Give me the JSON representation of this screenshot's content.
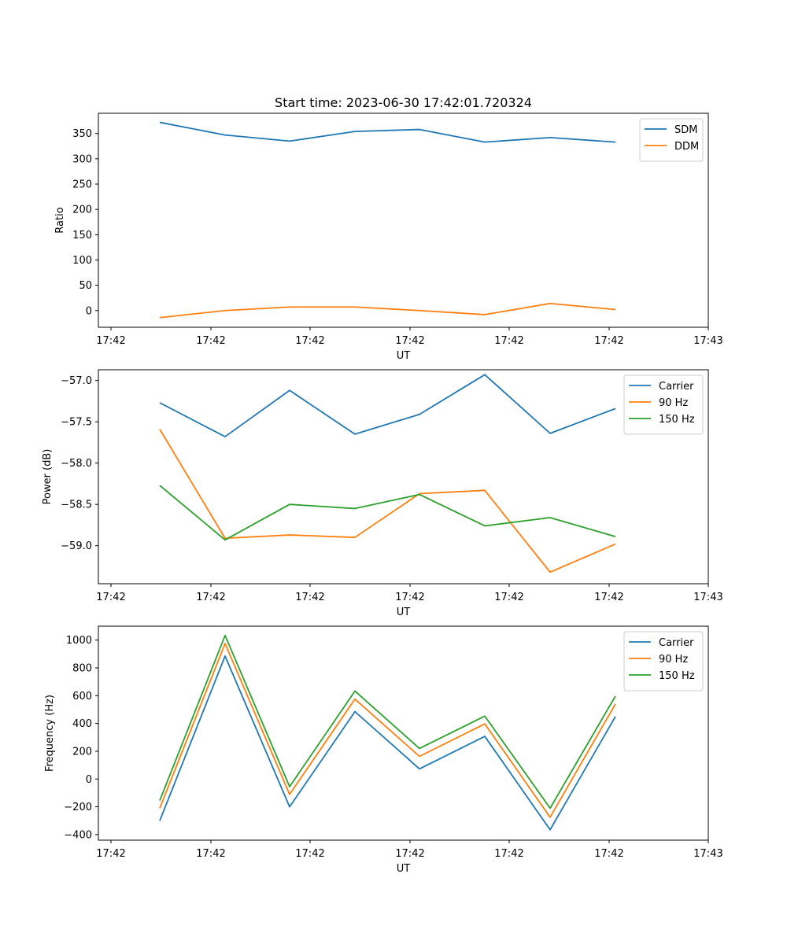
{
  "figure": {
    "title": "Start time: 2023-06-30 17:42:01.720324"
  },
  "colors": {
    "blue": "#1f77b4",
    "orange": "#ff7f0e",
    "green": "#2ca02c"
  },
  "chart_data": [
    {
      "type": "line",
      "title": "Start time: 2023-06-30 17:42:01.720324",
      "xlabel": "UT",
      "ylabel": "Ratio",
      "x_tick_labels": [
        "17:42",
        "17:42",
        "17:42",
        "17:42",
        "17:42",
        "17:42",
        "17:42"
      ],
      "x_end_label": "17:43",
      "x": [
        1,
        2,
        3,
        4,
        5,
        6,
        7,
        8
      ],
      "y_ticks": [
        0,
        50,
        100,
        150,
        200,
        250,
        300,
        350
      ],
      "ylim": [
        -33,
        390
      ],
      "legend": "top-right",
      "grid": false,
      "series": [
        {
          "name": "SDM",
          "color": "#1f77b4",
          "values": [
            372,
            347,
            335,
            354,
            358,
            333,
            342,
            333
          ]
        },
        {
          "name": "DDM",
          "color": "#ff7f0e",
          "values": [
            -14,
            0,
            7,
            7,
            0,
            -8,
            14,
            2
          ]
        }
      ]
    },
    {
      "type": "line",
      "xlabel": "UT",
      "ylabel": "Power (dB)",
      "x_tick_labels": [
        "17:42",
        "17:42",
        "17:42",
        "17:42",
        "17:42",
        "17:42",
        "17:42"
      ],
      "x_end_label": "17:43",
      "x": [
        1,
        2,
        3,
        4,
        5,
        6,
        7,
        8
      ],
      "y_ticks": [
        -59.0,
        -58.5,
        -58.0,
        -57.5,
        -57.0
      ],
      "y_tick_labels": [
        "−59.0",
        "−58.5",
        "−58.0",
        "−57.5",
        "−57.0"
      ],
      "ylim": [
        -59.46,
        -56.87
      ],
      "legend": "top-right",
      "grid": false,
      "series": [
        {
          "name": "Carrier",
          "color": "#1f77b4",
          "values": [
            -57.27,
            -57.68,
            -57.12,
            -57.65,
            -57.41,
            -56.93,
            -57.64,
            -57.34
          ]
        },
        {
          "name": "90 Hz",
          "color": "#ff7f0e",
          "values": [
            -57.59,
            -58.91,
            -58.87,
            -58.9,
            -58.37,
            -58.33,
            -59.32,
            -58.98
          ]
        },
        {
          "name": "150 Hz",
          "color": "#2ca02c",
          "values": [
            -58.27,
            -58.93,
            -58.5,
            -58.55,
            -58.38,
            -58.76,
            -58.66,
            -58.89
          ]
        }
      ]
    },
    {
      "type": "line",
      "xlabel": "UT",
      "ylabel": "Frequency (Hz)",
      "x_tick_labels": [
        "17:42",
        "17:42",
        "17:42",
        "17:42",
        "17:42",
        "17:42",
        "17:42"
      ],
      "x_end_label": "17:43",
      "x": [
        1,
        2,
        3,
        4,
        5,
        6,
        7,
        8
      ],
      "y_ticks": [
        -400,
        -200,
        0,
        200,
        400,
        600,
        800,
        1000
      ],
      "y_tick_labels": [
        "−400",
        "−200",
        "0",
        "200",
        "400",
        "600",
        "800",
        "1000"
      ],
      "ylim": [
        -440,
        1100
      ],
      "legend": "top-right",
      "grid": false,
      "series": [
        {
          "name": "Carrier",
          "color": "#1f77b4",
          "values": [
            -300,
            885,
            -200,
            485,
            73,
            307,
            -365,
            450
          ]
        },
        {
          "name": "90 Hz",
          "color": "#ff7f0e",
          "values": [
            -210,
            975,
            -110,
            575,
            163,
            397,
            -275,
            540
          ]
        },
        {
          "name": "150 Hz",
          "color": "#2ca02c",
          "values": [
            -155,
            1033,
            -55,
            633,
            220,
            453,
            -210,
            597
          ]
        }
      ]
    }
  ]
}
